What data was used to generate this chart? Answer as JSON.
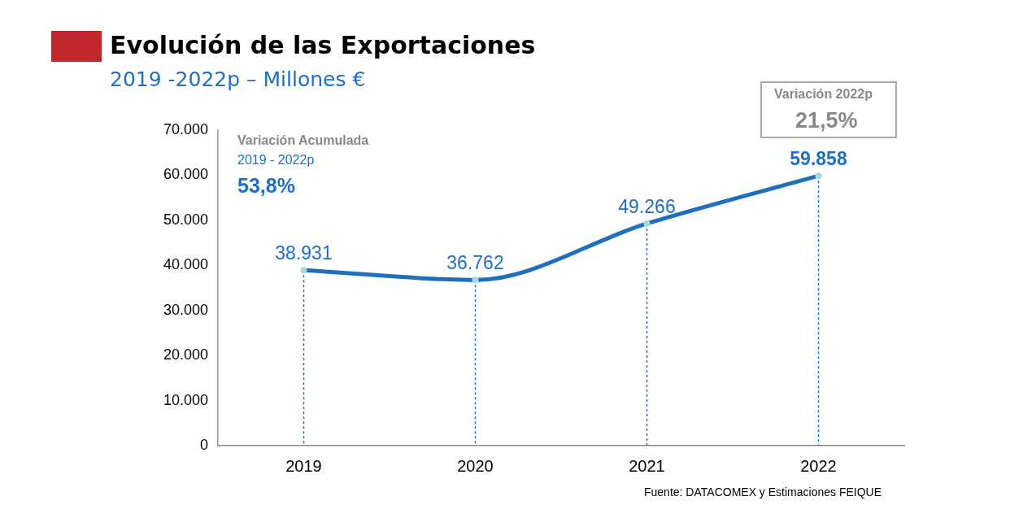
{
  "chart_data": {
    "type": "line",
    "title": "Evolución de las Exportaciones",
    "subtitle": "2019 -2022p  – Millones €",
    "categories": [
      "2019",
      "2020",
      "2021",
      "2022"
    ],
    "series": [
      {
        "color": "#1f6fbf",
        "values": [
          38931,
          36762,
          49266,
          59858
        ],
        "value_labels": [
          "38.931",
          "36.762",
          "49.266",
          "59.858"
        ]
      }
    ],
    "ylim": [
      0,
      70000
    ],
    "yticks": [
      {
        "value": 0,
        "label": "0"
      },
      {
        "value": 10000,
        "label": "10.000"
      },
      {
        "value": 20000,
        "label": "20.000"
      },
      {
        "value": 30000,
        "label": "30.000"
      },
      {
        "value": 40000,
        "label": "40.000"
      },
      {
        "value": 50000,
        "label": "50.000"
      },
      {
        "value": 60000,
        "label": "60.000"
      },
      {
        "value": 70000,
        "label": "70.000"
      }
    ],
    "grid": "x",
    "legend": false,
    "marker": "circle",
    "line_style": "solid",
    "annotations": [
      "Variación Acumulada",
      "2019 - 2022p",
      "53,8%",
      "Variación 2022p",
      "21,5%",
      "Fuente: DATACOMEX y Estimaciones FEIQUE"
    ]
  }
}
